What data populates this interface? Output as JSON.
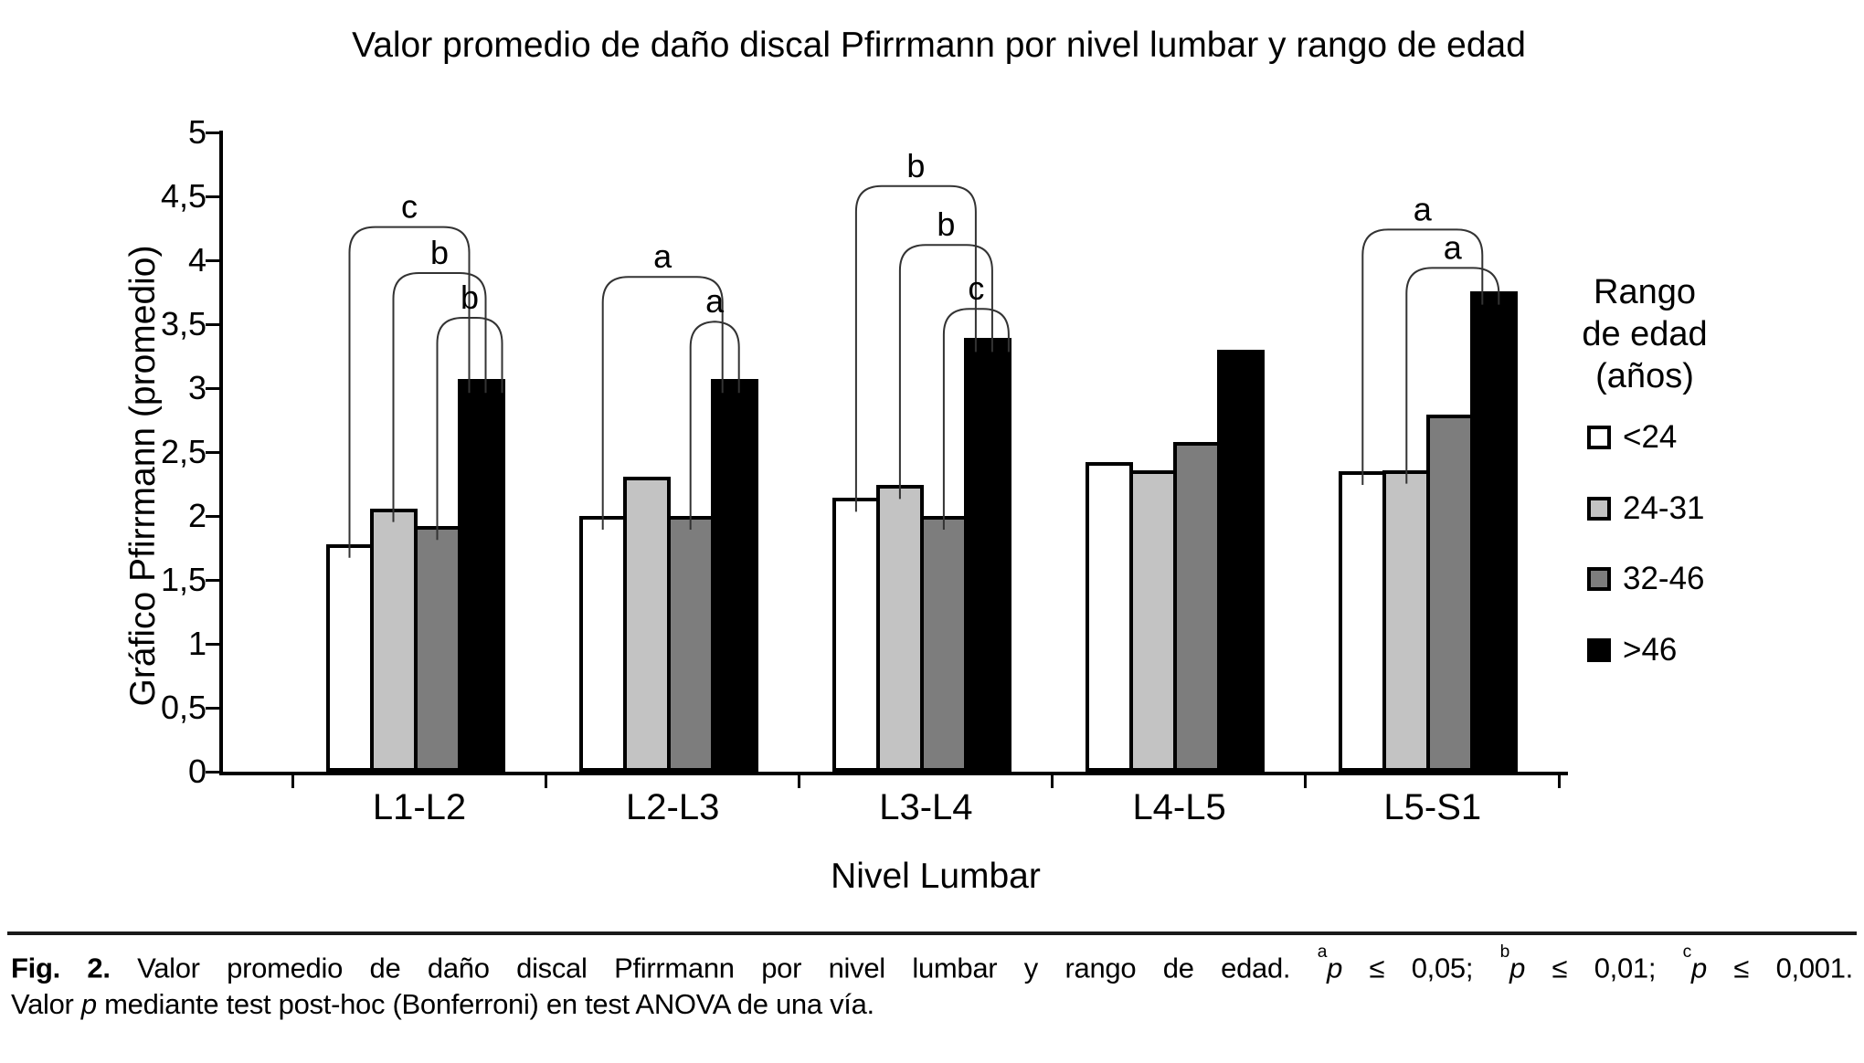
{
  "chart_data": {
    "type": "bar",
    "title": "Valor promedio de daño discal Pfirrmann por nivel lumbar y rango de edad",
    "xlabel": "Nivel Lumbar",
    "ylabel": "Gráfico Pfirrmann (promedio)",
    "ylim": [
      0,
      5
    ],
    "ytick_step": 0.5,
    "ytick_labels": [
      "0",
      "0,5",
      "1",
      "1,5",
      "2",
      "2,5",
      "3",
      "3,5",
      "4",
      "4,5",
      "5"
    ],
    "grid": false,
    "legend_position": "right",
    "legend_title_lines": [
      "Rango",
      "de edad",
      "(años)"
    ],
    "categories": [
      "L1-L2",
      "L2-L3",
      "L3-L4",
      "L4-L5",
      "L5-S1"
    ],
    "series": [
      {
        "name": "<24",
        "color": "#ffffff",
        "values": [
          1.78,
          2.0,
          2.14,
          2.42,
          2.35
        ]
      },
      {
        "name": "24-31",
        "color": "#c3c3c3",
        "values": [
          2.06,
          2.31,
          2.24,
          2.36,
          2.36
        ]
      },
      {
        "name": "32-46",
        "color": "#7d7d7d",
        "values": [
          1.92,
          2.0,
          2.0,
          2.58,
          2.79
        ]
      },
      {
        "name": ">46",
        "color": "#000000",
        "values": [
          3.07,
          3.07,
          3.39,
          3.3,
          3.76
        ]
      }
    ],
    "significance_brackets": [
      {
        "category": "L1-L2",
        "pair": [
          "<24",
          ">46"
        ],
        "label": "c",
        "height": 4.26
      },
      {
        "category": "L1-L2",
        "pair": [
          "24-31",
          ">46"
        ],
        "label": "b",
        "height": 3.9
      },
      {
        "category": "L1-L2",
        "pair": [
          "32-46",
          ">46"
        ],
        "label": "b",
        "height": 3.55
      },
      {
        "category": "L2-L3",
        "pair": [
          "<24",
          ">46"
        ],
        "label": "a",
        "height": 3.87
      },
      {
        "category": "L2-L3",
        "pair": [
          "32-46",
          ">46"
        ],
        "label": "a",
        "height": 3.52
      },
      {
        "category": "L3-L4",
        "pair": [
          "<24",
          ">46"
        ],
        "label": "b",
        "height": 4.58
      },
      {
        "category": "L3-L4",
        "pair": [
          "24-31",
          ">46"
        ],
        "label": "b",
        "height": 4.12
      },
      {
        "category": "L3-L4",
        "pair": [
          "32-46",
          ">46"
        ],
        "label": "c",
        "height": 3.62
      },
      {
        "category": "L5-S1",
        "pair": [
          "<24",
          ">46"
        ],
        "label": "a",
        "height": 4.24
      },
      {
        "category": "L5-S1",
        "pair": [
          "24-31",
          ">46"
        ],
        "label": "a",
        "height": 3.94
      }
    ]
  },
  "caption": {
    "fig_label": "Fig. 2.",
    "text": " Valor promedio de daño discal Pfirrmann por nivel lumbar y rango de edad. ",
    "sig": [
      {
        "sup": "a",
        "p": "p",
        "rest": " ≤ 0,05; "
      },
      {
        "sup": "b",
        "p": "p",
        "rest": " ≤ 0,01; "
      },
      {
        "sup": "c",
        "p": "p",
        "rest": " ≤ 0,001."
      }
    ],
    "line2_pre": "Valor ",
    "line2_p": "p",
    "line2_post": " mediante test post-hoc (Bonferroni) en test ANOVA de una vía."
  }
}
